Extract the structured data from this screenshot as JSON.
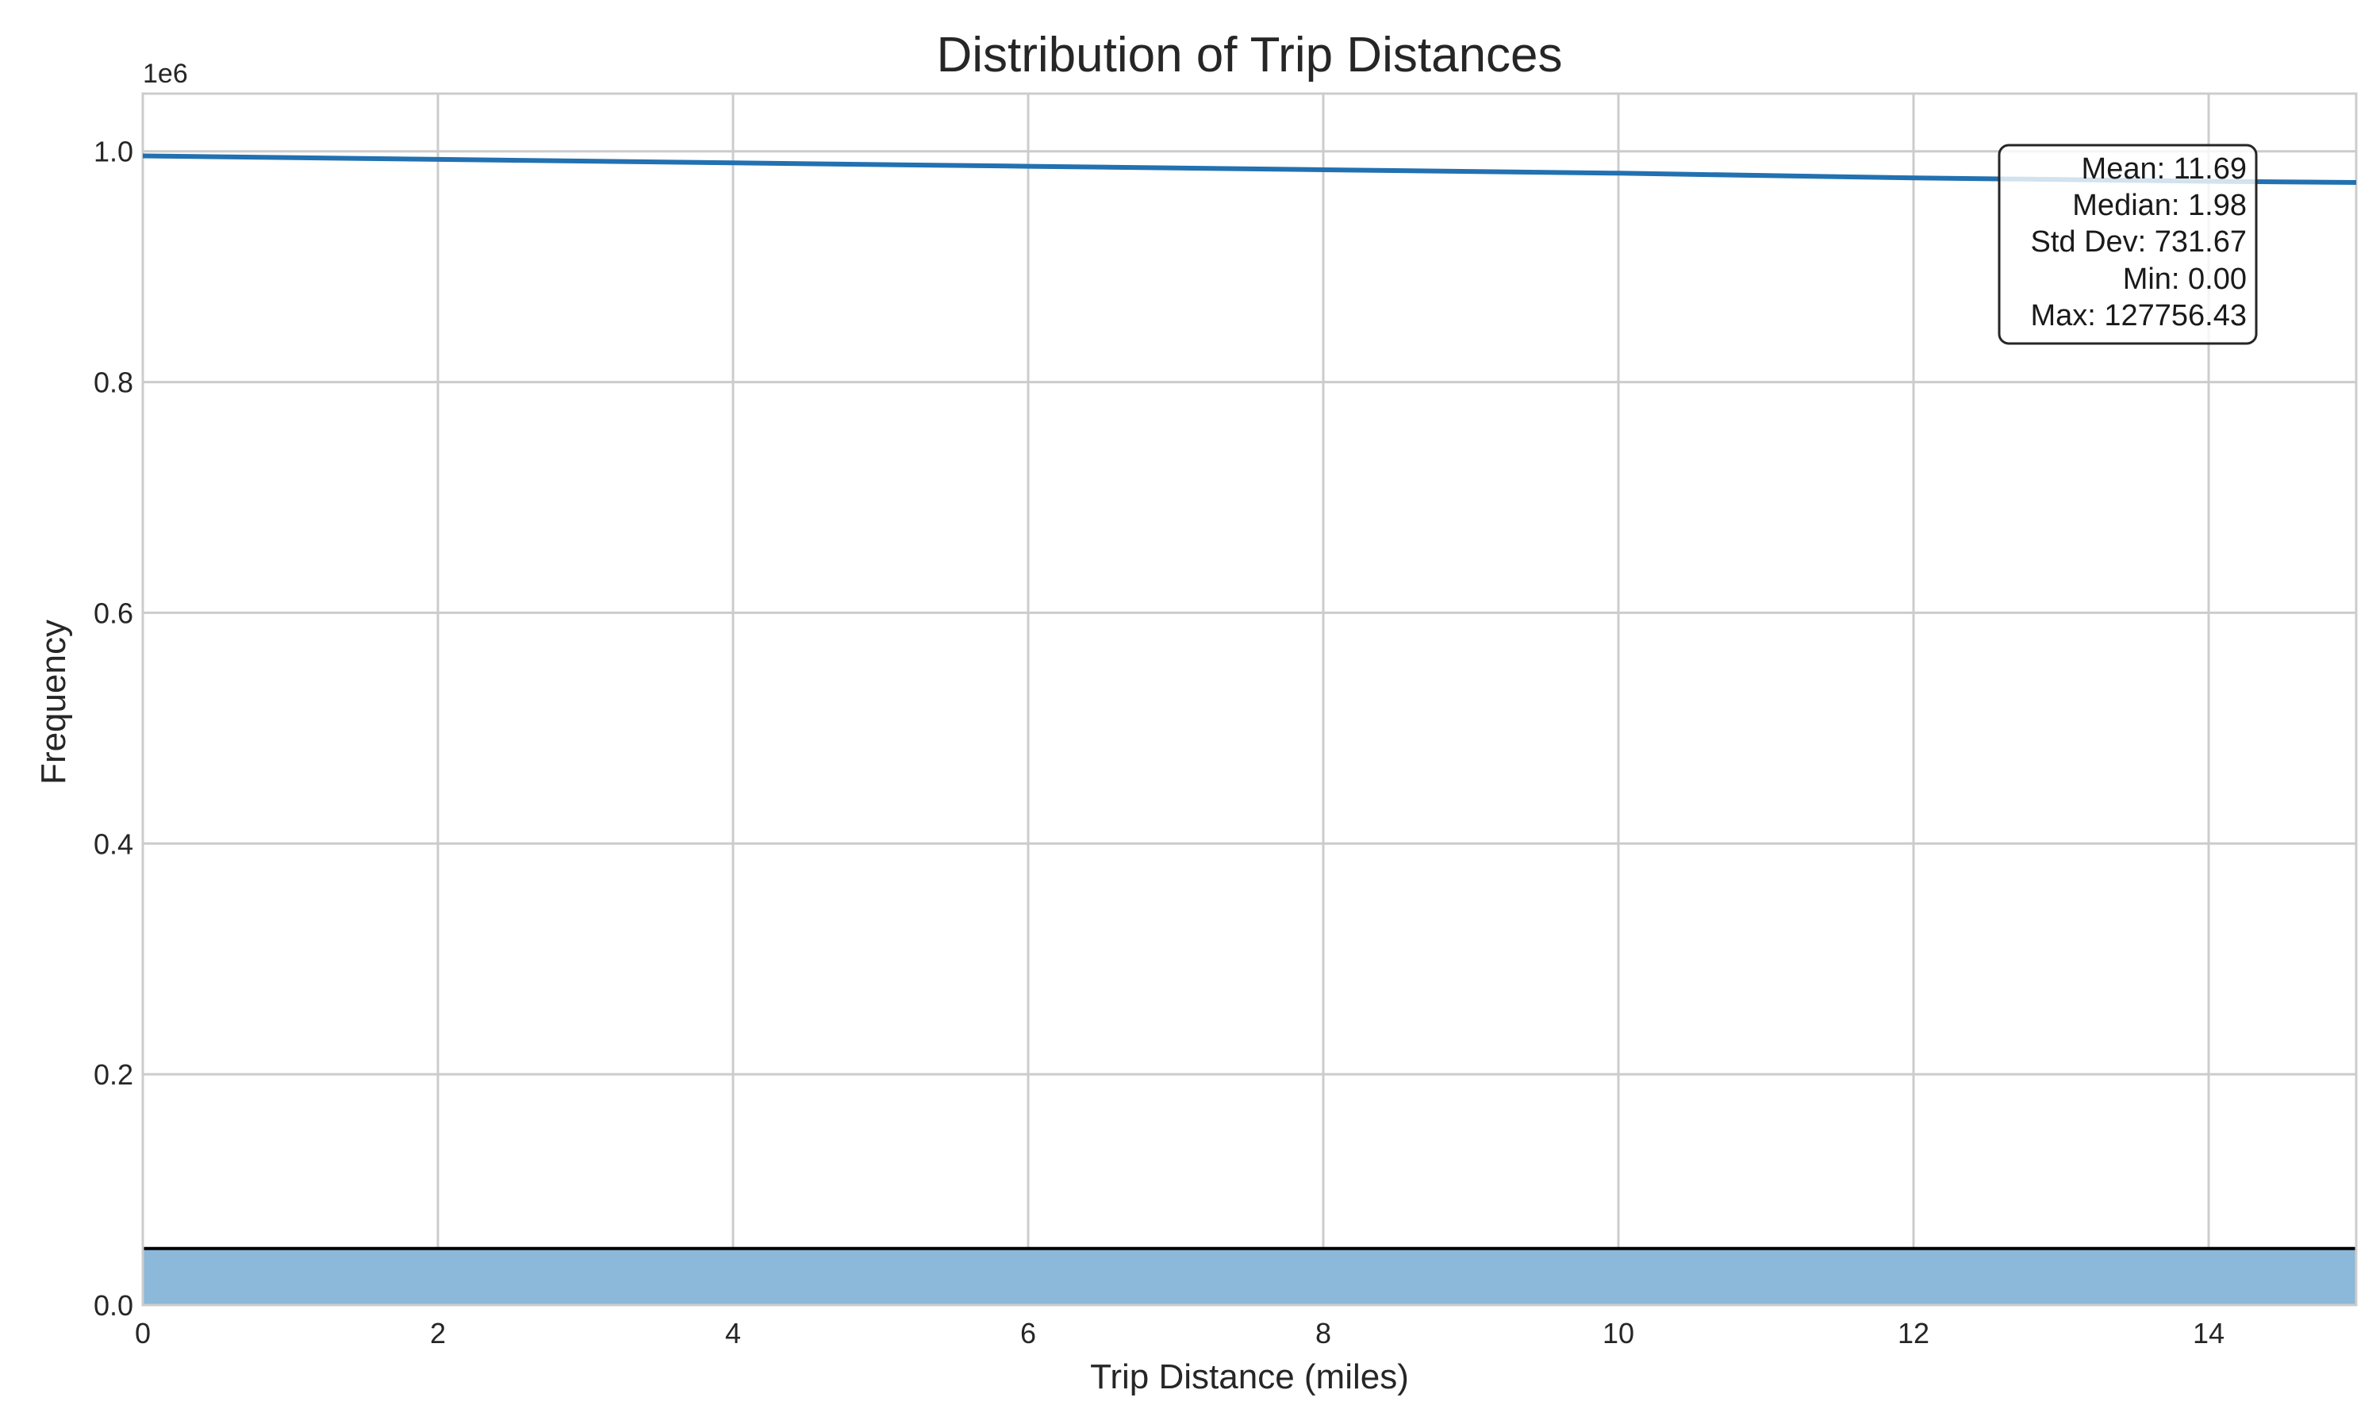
{
  "chart_data": {
    "type": "histogram",
    "title": "Distribution of Trip Distances",
    "xlabel": "Trip Distance (miles)",
    "ylabel": "Frequency",
    "y_offset_label": "1e6",
    "xlim": [
      0,
      15
    ],
    "ylim": [
      0,
      1.05
    ],
    "xticks": [
      0,
      2,
      4,
      6,
      8,
      10,
      12,
      14
    ],
    "yticks": [
      0.0,
      0.2,
      0.4,
      0.6,
      0.8,
      1.0
    ],
    "ytick_labels": [
      "0.0",
      "0.2",
      "0.4",
      "0.6",
      "0.8",
      "1.0"
    ],
    "grid": true,
    "bars": [
      {
        "x_start": 0,
        "x_end": 15,
        "value": 0.049
      }
    ],
    "kde_line": {
      "x": [
        0,
        2,
        4,
        6,
        8,
        10,
        12,
        14,
        15
      ],
      "y": [
        0.996,
        0.993,
        0.99,
        0.987,
        0.984,
        0.981,
        0.977,
        0.974,
        0.973
      ]
    },
    "stats_box": {
      "location": "top-right",
      "lines": [
        "Mean: 11.69",
        "Median: 1.98",
        "Std Dev: 731.67",
        "Min: 0.00",
        "Max: 127756.43"
      ]
    },
    "colors": {
      "bar_fill": "#8cb8d9",
      "bar_edge": "#000000",
      "kde": "#2271b1",
      "grid": "#cccccc",
      "spine": "#cccccc"
    }
  }
}
